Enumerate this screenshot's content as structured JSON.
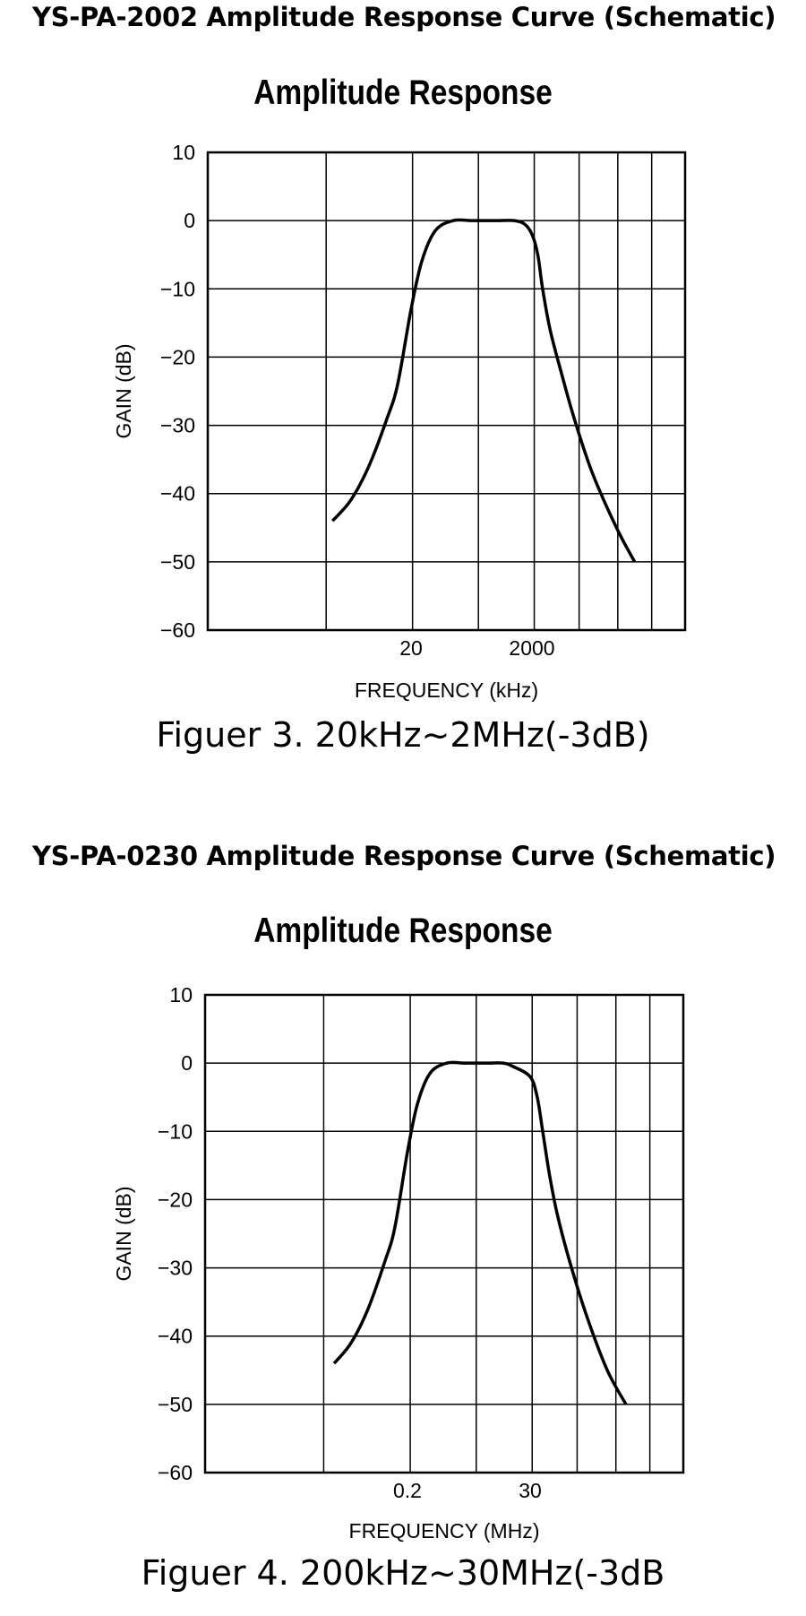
{
  "charts": [
    {
      "heading": "YS-PA-2002 Amplitude Response Curve (Schematic)",
      "caption": "Figuer 3. 20kHz~2MHz(-3dB)"
    },
    {
      "heading": "YS-PA-0230 Amplitude Response Curve (Schematic)",
      "caption": "Figuer 4. 200kHz~30MHz(-3dB"
    }
  ],
  "chart_data": [
    {
      "type": "line",
      "title": "Amplitude Response",
      "xlabel": "FREQUENCY (kHz)",
      "ylabel": "GAIN (dB)",
      "x_scale": "log",
      "ylim": [
        -60,
        10
      ],
      "y_ticks": [
        "10",
        "0",
        "−10",
        "−20",
        "−30",
        "−40",
        "−50",
        "−60"
      ],
      "x_tick_labels": [
        {
          "value": 20,
          "label": "20"
        },
        {
          "value": 2000,
          "label": "2000"
        }
      ],
      "grid": true,
      "series": [
        {
          "x": [
            1,
            2,
            4,
            8,
            12,
            20,
            30,
            50,
            100,
            200,
            500,
            1000,
            1500,
            2000,
            2500,
            3000,
            4000,
            6000,
            10000,
            20000,
            50000,
            100000
          ],
          "y": [
            -44,
            -41,
            -36,
            -29,
            -24,
            -13,
            -6,
            -1.5,
            0,
            0,
            0,
            0,
            -0.5,
            -2,
            -5,
            -10,
            -16,
            -22,
            -29,
            -37,
            -45,
            -50
          ]
        }
      ]
    },
    {
      "type": "line",
      "title": "Amplitude Response",
      "xlabel": "FREQUENCY (MHz)",
      "ylabel": "GAIN (dB)",
      "x_scale": "log",
      "ylim": [
        -60,
        10
      ],
      "y_ticks": [
        "10",
        "0",
        "−10",
        "−20",
        "−30",
        "−40",
        "−50",
        "−60"
      ],
      "x_tick_labels": [
        {
          "value": 0.2,
          "label": "0.2"
        },
        {
          "value": 30,
          "label": "30"
        }
      ],
      "grid": true,
      "series": [
        {
          "x": [
            0.01,
            0.02,
            0.04,
            0.08,
            0.12,
            0.2,
            0.3,
            0.5,
            1,
            2,
            5,
            10,
            15,
            30,
            40,
            50,
            65,
            90,
            150,
            300,
            700,
            1500
          ],
          "y": [
            -44,
            -41,
            -36,
            -29,
            -24,
            -13,
            -6,
            -1.5,
            0,
            0,
            0,
            0,
            -0.5,
            -2,
            -5,
            -10,
            -16,
            -22,
            -29,
            -37,
            -45,
            -50
          ]
        }
      ]
    }
  ]
}
